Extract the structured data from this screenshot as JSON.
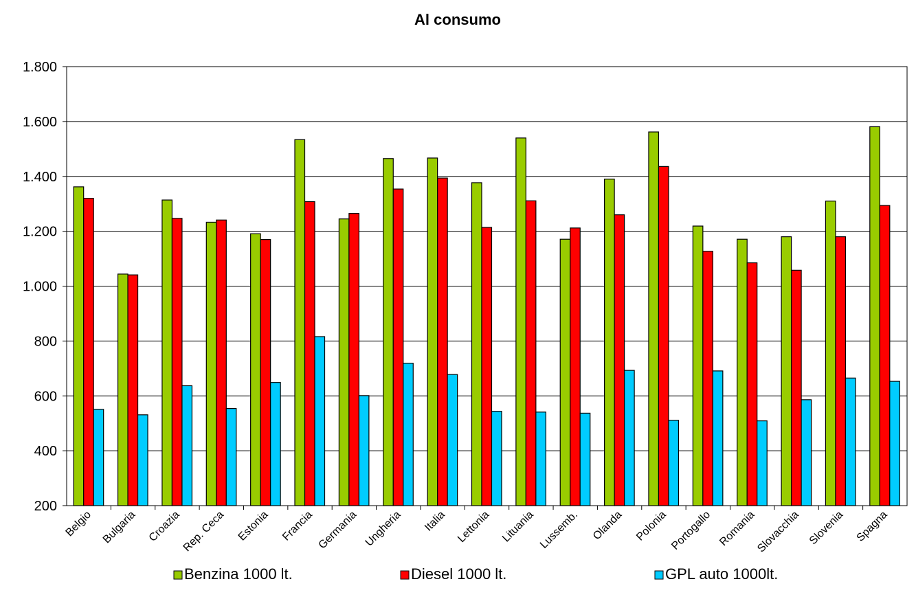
{
  "chart_data": {
    "type": "bar",
    "title": "Al consumo",
    "xlabel": "",
    "ylabel": "",
    "ylim": [
      200,
      1800
    ],
    "yticks": [
      200,
      400,
      600,
      800,
      1000,
      1200,
      1400,
      1600,
      1800
    ],
    "ytick_labels": [
      "200",
      "400",
      "600",
      "800",
      "1.000",
      "1.200",
      "1.400",
      "1.600",
      "1.800"
    ],
    "grid": "horizontal",
    "legend_position": "bottom",
    "categories": [
      "Belgio",
      "Bulgaria",
      "Croazia",
      "Rep. Ceca",
      "Estonia",
      "Francia",
      "Germania",
      "Ungheria",
      "Italia",
      "Lettonia",
      "Lituania",
      "Lussemb.",
      "Olanda",
      "Polonia",
      "Portogallo",
      "Romania",
      "Slovacchia",
      "Slovenia",
      "Spagna"
    ],
    "series": [
      {
        "name": "Benzina 1000 lt.",
        "color": "#99cc00",
        "values": [
          1362,
          1044,
          1314,
          1233,
          1191,
          1534,
          1245,
          1465,
          1467,
          1377,
          1540,
          1171,
          1390,
          1562,
          1219,
          1171,
          1180,
          1310,
          1581
        ]
      },
      {
        "name": "Diesel 1000 lt.",
        "color": "#ff0000",
        "values": [
          1320,
          1041,
          1247,
          1241,
          1170,
          1308,
          1265,
          1354,
          1394,
          1214,
          1311,
          1212,
          1260,
          1436,
          1127,
          1085,
          1058,
          1180,
          1294
        ]
      },
      {
        "name": "GPL auto 1000lt.",
        "color": "#00ccff",
        "values": [
          551,
          531,
          637,
          554,
          649,
          816,
          601,
          719,
          678,
          544,
          541,
          537,
          693,
          511,
          691,
          509,
          586,
          665,
          653
        ]
      }
    ]
  }
}
